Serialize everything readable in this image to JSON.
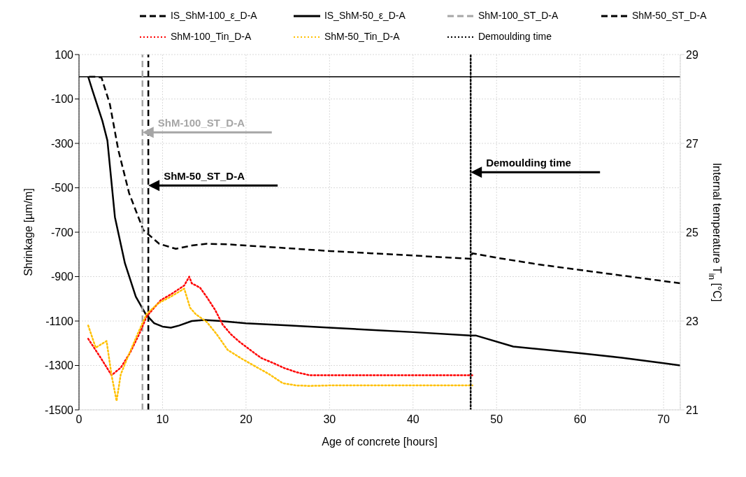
{
  "chart_data": {
    "type": "line",
    "xlabel": "Age of concrete [hours]",
    "ylabel": "Shrinkage [µm/m]",
    "y2label": "Internal temperature T$_{in}$ [°C]",
    "xlim": [
      0,
      72
    ],
    "xticks": [
      0,
      10,
      20,
      30,
      40,
      50,
      60,
      70
    ],
    "ylim": [
      -1500,
      100
    ],
    "yticks": [
      -1500,
      -1300,
      -1100,
      -900,
      -700,
      -500,
      -300,
      -100,
      100
    ],
    "y2lim": [
      21,
      29
    ],
    "y2ticks": [
      21,
      23,
      25,
      27,
      29
    ],
    "grid": true,
    "legend": "top",
    "marker": "none",
    "ref_lines": [
      {
        "axis": "y",
        "value": 0,
        "color": "#000000",
        "line_style": "solid"
      }
    ],
    "series": [
      {
        "name": "IS_ShM-100_ε_D-A",
        "color": "#000000",
        "line_style": "dashed",
        "x": [
          1.2,
          2.1,
          2.7,
          3.7,
          4.7,
          6.0,
          7.7,
          9.6,
          11.6,
          13.5,
          15.3,
          18,
          20,
          25,
          30,
          35,
          40,
          46.9,
          47.1,
          50,
          55,
          60,
          65,
          70,
          72
        ],
        "values": [
          0,
          0,
          -4,
          -124,
          -329,
          -524,
          -690,
          -752,
          -775,
          -760,
          -752,
          -755,
          -760,
          -772,
          -785,
          -795,
          -805,
          -820,
          -795,
          -815,
          -845,
          -870,
          -895,
          -920,
          -930
        ]
      },
      {
        "name": "IS_ShM-50_ε_D-A",
        "color": "#000000",
        "line_style": "solid",
        "x": [
          1.1,
          1.6,
          2.8,
          3.4,
          4.3,
          5.5,
          6.8,
          8.0,
          9.0,
          10.0,
          11.0,
          12.0,
          13.5,
          15.0,
          17,
          20,
          25,
          30,
          35,
          40,
          46.9,
          47.5,
          52,
          60,
          65,
          70,
          72
        ],
        "values": [
          0,
          -60,
          -199,
          -287,
          -632,
          -840,
          -990,
          -1070,
          -1110,
          -1125,
          -1130,
          -1120,
          -1100,
          -1095,
          -1100,
          -1110,
          -1120,
          -1130,
          -1140,
          -1150,
          -1165,
          -1165,
          -1215,
          -1245,
          -1265,
          -1290,
          -1300
        ]
      },
      {
        "name": "ShM-100_ST_D-A",
        "color": "#a6a6a6",
        "line_style": "dashed",
        "x": [
          7.6,
          7.6
        ],
        "values": [
          -1500,
          100
        ]
      },
      {
        "name": "ShM-50_ST_D-A",
        "color": "#000000",
        "line_style": "dashed",
        "x": [
          8.3,
          8.3
        ],
        "values": [
          -1500,
          100
        ]
      },
      {
        "name": "ShM-100_Tin_D-A",
        "color": "#ff0000",
        "line_style": "dotted",
        "axis": "y2",
        "x": [
          1.1,
          2.5,
          3.9,
          5.0,
          6.1,
          7.2,
          8.1,
          9.0,
          9.8,
          11.0,
          12.6,
          13.2,
          13.5,
          14.5,
          15.3,
          16.3,
          17.2,
          18.2,
          19.1,
          20.5,
          21.8,
          23.3,
          24.6,
          26,
          27.6,
          30,
          35,
          40,
          45,
          47.1
        ],
        "values": [
          22.6,
          22.2,
          21.78,
          21.95,
          22.28,
          22.7,
          23.1,
          23.3,
          23.47,
          23.6,
          23.8,
          24.0,
          23.85,
          23.75,
          23.54,
          23.25,
          22.92,
          22.7,
          22.55,
          22.35,
          22.17,
          22.05,
          21.94,
          21.85,
          21.78,
          21.78,
          21.78,
          21.78,
          21.78,
          21.78
        ]
      },
      {
        "name": "ShM-50_Tin_D-A",
        "color": "#ffc000",
        "line_style": "dotted",
        "axis": "y2",
        "x": [
          1.1,
          2.0,
          3.3,
          3.9,
          4.5,
          5.0,
          5.8,
          7.0,
          8.1,
          9.5,
          11.0,
          12.6,
          13.3,
          14.0,
          15.3,
          16.5,
          17.8,
          19.5,
          21.1,
          22.8,
          24.4,
          26,
          27.6,
          30,
          35,
          40,
          45,
          47.1
        ],
        "values": [
          22.9,
          22.4,
          22.55,
          21.78,
          21.2,
          21.8,
          22.17,
          22.7,
          23.16,
          23.4,
          23.55,
          23.73,
          23.3,
          23.15,
          22.98,
          22.7,
          22.35,
          22.15,
          21.98,
          21.8,
          21.6,
          21.55,
          21.54,
          21.55,
          21.55,
          21.55,
          21.55,
          21.55
        ]
      },
      {
        "name": "Demoulding time",
        "color": "#000000",
        "line_style": "dotted",
        "x": [
          46.9,
          46.9
        ],
        "values": [
          -1500,
          100
        ]
      }
    ],
    "annotations": [
      {
        "text": "ShM-100_ST_D-A",
        "x": 7.6,
        "y": -250
      },
      {
        "text": "ShM-50_ST_D-A",
        "x": 8.3,
        "y": -490
      },
      {
        "text": "Demoulding time",
        "x": 46.9,
        "y": -430
      }
    ]
  }
}
